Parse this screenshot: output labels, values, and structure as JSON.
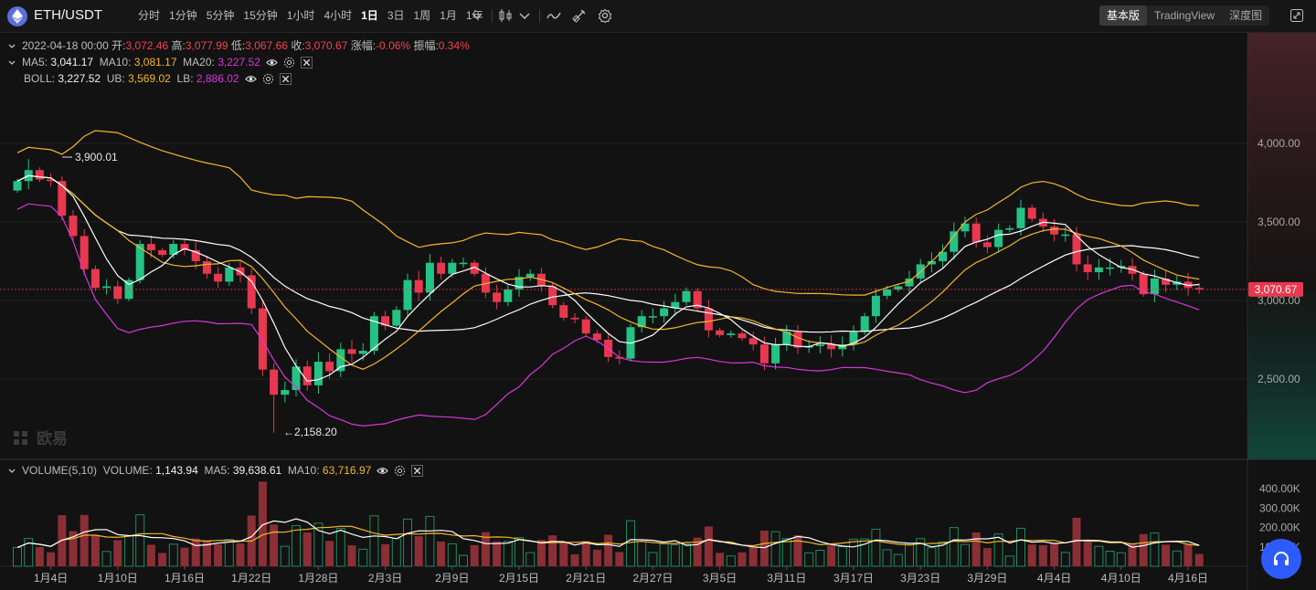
{
  "header": {
    "pair": "ETH/USDT",
    "intervals": [
      "分时",
      "1分钟",
      "5分钟",
      "15分钟",
      "1小时",
      "4小时",
      "1日",
      "3日",
      "1周",
      "1月",
      "1年"
    ],
    "active_interval": "1日",
    "view_tabs": [
      "基本版",
      "TradingView",
      "深度图"
    ],
    "active_view": "基本版"
  },
  "ohlc": {
    "date": "2022-04-18 00:00",
    "open_label": "开:",
    "open": "3,072.46",
    "high_label": "高:",
    "high": "3,077.99",
    "low_label": "低:",
    "low": "3,067.66",
    "close_label": "收:",
    "close": "3,070.67",
    "change_label": "涨幅:",
    "change": "-0.06%",
    "amp_label": "振幅:",
    "amp": "0.34%"
  },
  "ma": {
    "ma5_label": "MA5:",
    "ma5": "3,041.17",
    "ma10_label": "MA10:",
    "ma10": "3,081.17",
    "ma20_label": "MA20:",
    "ma20": "3,227.52"
  },
  "boll": {
    "label": "BOLL:",
    "mid": "3,227.52",
    "ub_label": "UB:",
    "ub": "3,569.02",
    "lb_label": "LB:",
    "lb": "2,886.02"
  },
  "volume_legend": {
    "label": "VOLUME(5,10)",
    "vol_label": "VOLUME:",
    "vol": "1,143.94",
    "ma5_label": "MA5:",
    "ma5": "39,638.61",
    "ma10_label": "MA10:",
    "ma10": "63,716.97"
  },
  "watermark": "欧易",
  "colors": {
    "up": "#25c285",
    "down": "#e8384f",
    "ma5": "#ffffff",
    "ma10": "#f4b628",
    "ma20": "#ffffff",
    "boll_band": "#f4b628",
    "boll_lb": "#d936d9",
    "price_tag": "#e8384f"
  },
  "chart_data": {
    "type": "candlestick",
    "start_date": "2022-01-01",
    "y_ticks": [
      "4,000.00",
      "3,500.00",
      "3,000.00",
      "2,500.00"
    ],
    "y_tick_values": [
      4000,
      3500,
      3000,
      2500
    ],
    "x_tick_labels": [
      "1月4日",
      "1月10日",
      "1月16日",
      "1月22日",
      "1月28日",
      "2月3日",
      "2月9日",
      "2月15日",
      "2月21日",
      "2月27日",
      "3月5日",
      "3月11日",
      "3月17日",
      "3月23日",
      "3月29日",
      "4月4日",
      "4月10日",
      "4月16日"
    ],
    "x_tick_days": [
      3,
      9,
      15,
      21,
      27,
      33,
      39,
      45,
      51,
      57,
      63,
      69,
      75,
      81,
      87,
      93,
      99,
      105
    ],
    "high_marker": "3,900.01",
    "low_marker": "2,158.20",
    "last_price": "3,070.67",
    "last_value": 3070.67,
    "vol_ticks": [
      "400.00K",
      "300.00K",
      "200.00K",
      "100.00K"
    ],
    "vol_tick_values": [
      400000,
      300000,
      200000,
      100000
    ],
    "closes": [
      3760,
      3830,
      3770,
      3760,
      3540,
      3410,
      3200,
      3080,
      3090,
      3010,
      3130,
      3360,
      3320,
      3290,
      3360,
      3320,
      3250,
      3170,
      3120,
      3210,
      3160,
      2950,
      2560,
      2400,
      2430,
      2580,
      2460,
      2610,
      2550,
      2690,
      2660,
      2680,
      2900,
      2840,
      2940,
      3130,
      3050,
      3240,
      3170,
      3240,
      3240,
      3170,
      3050,
      2990,
      3070,
      3150,
      3170,
      3090,
      2970,
      2890,
      2880,
      2790,
      2750,
      2640,
      2630,
      2830,
      2900,
      2900,
      2950,
      2990,
      3060,
      2950,
      2810,
      2780,
      2790,
      2760,
      2720,
      2600,
      2720,
      2800,
      2700,
      2710,
      2720,
      2690,
      2720,
      2800,
      2900,
      3030,
      3070,
      3090,
      3140,
      3230,
      3250,
      3310,
      3440,
      3490,
      3370,
      3340,
      3450,
      3460,
      3590,
      3520,
      3470,
      3420,
      3420,
      3230,
      3180,
      3210,
      3210,
      3220,
      3170,
      3040,
      3140,
      3100,
      3120,
      3080,
      3070
    ]
  }
}
